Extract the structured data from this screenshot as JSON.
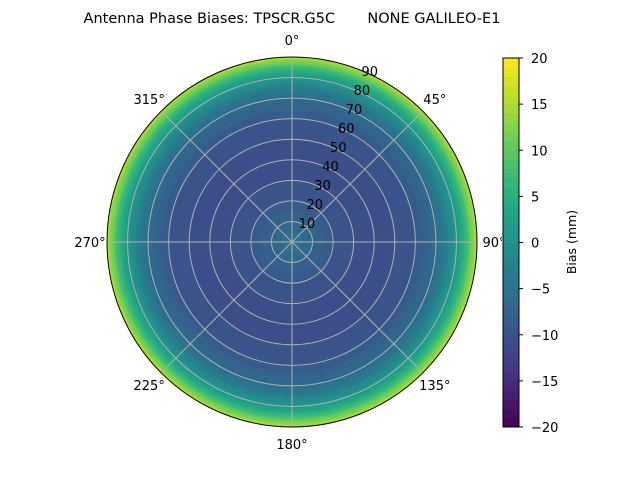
{
  "chart_data": {
    "type": "heatmap",
    "subtype": "polar",
    "title": "Antenna Phase Biases: TPSCR.G5C       NONE GALILEO-E1",
    "angular_ticks": [
      "0°",
      "45°",
      "90°",
      "135°",
      "180°",
      "225°",
      "270°",
      "315°"
    ],
    "angular_tick_values": [
      0,
      45,
      90,
      135,
      180,
      225,
      270,
      315
    ],
    "angular_direction": "clockwise",
    "angular_zero": "top",
    "radial_ticks": [
      "10",
      "20",
      "30",
      "40",
      "50",
      "60",
      "70",
      "80",
      "90"
    ],
    "radial_tick_values": [
      10,
      20,
      30,
      40,
      50,
      60,
      70,
      80,
      90
    ],
    "rlim": [
      0,
      90
    ],
    "grid": true,
    "colormap": "viridis",
    "radial_profile": {
      "zenith": [
        0,
        10,
        20,
        30,
        40,
        50,
        60,
        70,
        75,
        80,
        85,
        90
      ],
      "bias": [
        -5,
        -7,
        -9,
        -10,
        -10.5,
        -10,
        -9,
        -6,
        -3,
        1,
        7,
        16
      ]
    },
    "colorbar": {
      "label": "Bias (mm)",
      "ticks": [
        "−20",
        "−15",
        "−10",
        "−5",
        "0",
        "5",
        "10",
        "15",
        "20"
      ],
      "tick_values": [
        -20,
        -15,
        -10,
        -5,
        0,
        5,
        10,
        15,
        20
      ],
      "range": [
        -20,
        20
      ],
      "levels": 40
    }
  }
}
